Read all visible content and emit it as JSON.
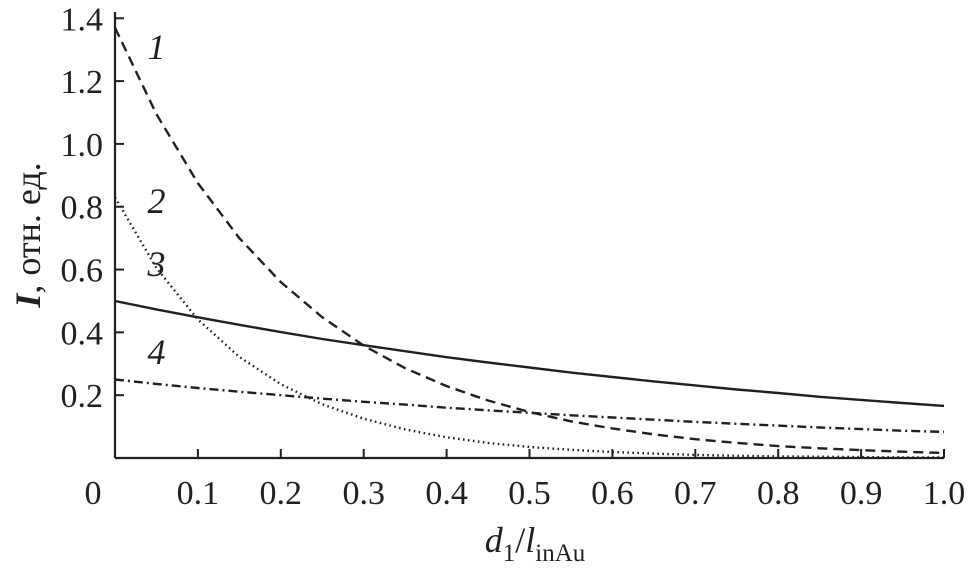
{
  "chart_data": {
    "type": "line",
    "xlabel": {
      "var": "d",
      "sub1": "1",
      "slash": "/",
      "var2": "l",
      "sub2": "inAu"
    },
    "ylabel": {
      "var": "I",
      "rest": ", отн. ед."
    },
    "xlim": [
      0,
      1.0
    ],
    "ylim": [
      0,
      1.42
    ],
    "x_ticks": [
      {
        "value": 0,
        "label": "0"
      },
      {
        "value": 0.1,
        "label": "0.1"
      },
      {
        "value": 0.2,
        "label": "0.2"
      },
      {
        "value": 0.3,
        "label": "0.3"
      },
      {
        "value": 0.4,
        "label": "0.4"
      },
      {
        "value": 0.5,
        "label": "0.5"
      },
      {
        "value": 0.6,
        "label": "0.6"
      },
      {
        "value": 0.7,
        "label": "0.7"
      },
      {
        "value": 0.8,
        "label": "0.8"
      },
      {
        "value": 0.9,
        "label": "0.9"
      },
      {
        "value": 1.0,
        "label": "1.0"
      }
    ],
    "y_ticks": [
      {
        "value": 0.2,
        "label": "0.2"
      },
      {
        "value": 0.4,
        "label": "0.4"
      },
      {
        "value": 0.6,
        "label": "0.6"
      },
      {
        "value": 0.8,
        "label": "0.8"
      },
      {
        "value": 1.0,
        "label": "1.0"
      },
      {
        "value": 1.2,
        "label": "1.2"
      },
      {
        "value": 1.4,
        "label": "1.4"
      }
    ],
    "grid": false,
    "legend": "none",
    "series": [
      {
        "label": "1",
        "style": "dashed",
        "label_at": [
          0.05,
          1.27
        ],
        "x": [
          0,
          0.05,
          0.1,
          0.15,
          0.2,
          0.25,
          0.3,
          0.35,
          0.4,
          0.45,
          0.5,
          0.55,
          0.6,
          0.65,
          0.7,
          0.75,
          0.8,
          0.85,
          0.9,
          0.95,
          1.0
        ],
        "y": [
          1.37,
          1.095,
          0.875,
          0.7,
          0.56,
          0.448,
          0.358,
          0.286,
          0.229,
          0.183,
          0.146,
          0.117,
          0.094,
          0.075,
          0.06,
          0.048,
          0.038,
          0.031,
          0.025,
          0.02,
          0.016
        ]
      },
      {
        "label": "2",
        "style": "dotted",
        "label_at": [
          0.05,
          0.78
        ],
        "x": [
          0,
          0.05,
          0.1,
          0.15,
          0.2,
          0.25,
          0.3,
          0.35,
          0.4,
          0.45,
          0.5,
          0.55,
          0.6,
          0.65,
          0.7,
          0.75,
          0.8,
          0.85,
          0.9,
          0.95,
          1.0
        ],
        "y": [
          0.83,
          0.605,
          0.441,
          0.322,
          0.235,
          0.171,
          0.125,
          0.091,
          0.066,
          0.048,
          0.035,
          0.026,
          0.019,
          0.014,
          0.01,
          0.007,
          0.005,
          0.004,
          0.003,
          0.002,
          0.002
        ]
      },
      {
        "label": "3",
        "style": "solid",
        "label_at": [
          0.05,
          0.58
        ],
        "x": [
          0,
          0.05,
          0.1,
          0.15,
          0.2,
          0.25,
          0.3,
          0.35,
          0.4,
          0.45,
          0.5,
          0.55,
          0.6,
          0.65,
          0.7,
          0.75,
          0.8,
          0.85,
          0.9,
          0.95,
          1.0
        ],
        "y": [
          0.5,
          0.473,
          0.448,
          0.424,
          0.401,
          0.379,
          0.359,
          0.34,
          0.321,
          0.304,
          0.288,
          0.272,
          0.258,
          0.244,
          0.231,
          0.218,
          0.207,
          0.195,
          0.185,
          0.175,
          0.166
        ]
      },
      {
        "label": "4",
        "style": "dashdot",
        "label_at": [
          0.05,
          0.3
        ],
        "x": [
          0,
          0.05,
          0.1,
          0.15,
          0.2,
          0.25,
          0.3,
          0.35,
          0.4,
          0.45,
          0.5,
          0.55,
          0.6,
          0.65,
          0.7,
          0.75,
          0.8,
          0.85,
          0.9,
          0.95,
          1.0
        ],
        "y": [
          0.25,
          0.236,
          0.223,
          0.211,
          0.2,
          0.189,
          0.179,
          0.17,
          0.16,
          0.152,
          0.144,
          0.136,
          0.129,
          0.122,
          0.115,
          0.109,
          0.103,
          0.097,
          0.092,
          0.087,
          0.083
        ]
      }
    ]
  }
}
